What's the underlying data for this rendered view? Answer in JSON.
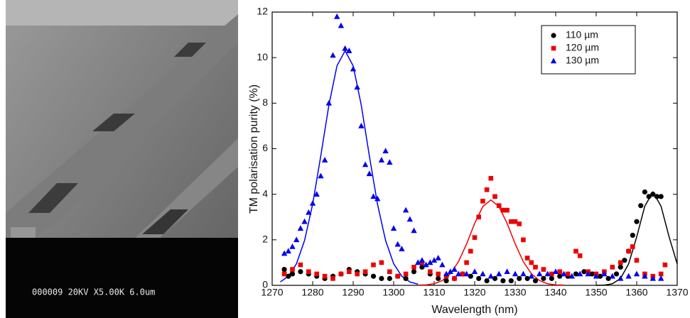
{
  "image": {
    "caption": "000009 20KV X5.00K 6.0um"
  },
  "chart_data": {
    "type": "scatter",
    "xlabel": "Wavelength (nm)",
    "ylabel": "TM polarisation purity (%)",
    "xlim": [
      1270,
      1370
    ],
    "xticks": [
      1270,
      1280,
      1290,
      1300,
      1310,
      1320,
      1330,
      1340,
      1350,
      1360,
      1370
    ],
    "ylim": [
      0,
      12
    ],
    "yticks": [
      0,
      2,
      4,
      6,
      8,
      10,
      12
    ],
    "legend": "upper right",
    "series": [
      {
        "name": "110 µm",
        "color": "#000000",
        "marker": "circle",
        "x": [
          1273,
          1274,
          1275,
          1277,
          1279,
          1281,
          1283,
          1285,
          1287,
          1289,
          1291,
          1293,
          1295,
          1297,
          1299,
          1301,
          1303,
          1305,
          1307,
          1309,
          1311,
          1313,
          1315,
          1317,
          1319,
          1321,
          1323,
          1325,
          1327,
          1329,
          1331,
          1333,
          1335,
          1337,
          1339,
          1341,
          1343,
          1345,
          1347,
          1349,
          1351,
          1353,
          1355,
          1356,
          1357,
          1358,
          1359,
          1360,
          1361,
          1362,
          1363,
          1364,
          1365,
          1366
        ],
        "values": [
          0.7,
          0.4,
          0.5,
          0.6,
          0.5,
          0.4,
          0.3,
          0.4,
          0.5,
          0.7,
          0.6,
          0.5,
          0.4,
          0.3,
          0.3,
          0.4,
          0.3,
          0.6,
          0.8,
          0.5,
          0.3,
          0.2,
          0.3,
          0.5,
          0.4,
          0.3,
          0.2,
          0.3,
          0.2,
          0.2,
          0.3,
          0.3,
          0.2,
          0.3,
          0.3,
          0.4,
          0.4,
          0.5,
          0.6,
          0.5,
          0.4,
          0.3,
          0.5,
          0.8,
          1.1,
          1.5,
          2.2,
          2.8,
          3.5,
          4.1,
          3.9,
          4.0,
          3.9,
          3.9
        ],
        "fit": {
          "x": [
            1350,
            1352,
            1354,
            1356,
            1358,
            1360,
            1362,
            1364,
            1366,
            1368,
            1370
          ],
          "values": [
            0,
            0.01,
            0.07,
            0.3,
            0.94,
            2.13,
            3.48,
            4.1,
            3.48,
            2.13,
            0.94
          ]
        }
      },
      {
        "name": "120 µm",
        "color": "#ee0000",
        "marker": "square",
        "x": [
          1273,
          1275,
          1277,
          1279,
          1281,
          1283,
          1285,
          1287,
          1289,
          1291,
          1293,
          1295,
          1297,
          1299,
          1301,
          1303,
          1305,
          1307,
          1309,
          1311,
          1313,
          1315,
          1317,
          1318,
          1319,
          1320,
          1321,
          1322,
          1323,
          1324,
          1325,
          1326,
          1327,
          1328,
          1329,
          1330,
          1331,
          1332,
          1333,
          1334,
          1335,
          1337,
          1339,
          1341,
          1343,
          1345,
          1346,
          1348,
          1350,
          1352,
          1354,
          1356,
          1358,
          1359,
          1360,
          1362,
          1364,
          1366,
          1367
        ],
        "values": [
          0.5,
          0.7,
          0.9,
          0.6,
          0.5,
          0.4,
          0.3,
          0.5,
          0.6,
          0.5,
          0.6,
          0.9,
          1.0,
          0.6,
          0.4,
          0.5,
          0.8,
          1.0,
          0.6,
          0.5,
          0.4,
          0.3,
          0.5,
          1.0,
          1.5,
          2.1,
          3.0,
          3.7,
          4.2,
          4.7,
          3.9,
          3.5,
          3.3,
          3.3,
          2.8,
          2.8,
          2.7,
          2.0,
          1.2,
          1.0,
          0.8,
          0.7,
          0.5,
          0.6,
          0.5,
          1.5,
          1.3,
          0.6,
          0.5,
          0.6,
          0.8,
          1.0,
          1.5,
          1.7,
          1.1,
          0.5,
          0.4,
          0.5,
          0.9
        ],
        "fit": {
          "x": [
            1306,
            1308,
            1310,
            1312,
            1314,
            1316,
            1318,
            1320,
            1322,
            1324,
            1326,
            1328,
            1330,
            1332,
            1334,
            1336,
            1338,
            1340,
            1342
          ],
          "values": [
            0.01,
            0.02,
            0.07,
            0.21,
            0.51,
            1.04,
            1.82,
            2.72,
            3.46,
            3.75,
            3.46,
            2.72,
            1.82,
            1.04,
            0.51,
            0.21,
            0.07,
            0.02,
            0.01
          ]
        }
      },
      {
        "name": "130 µm",
        "color": "#0000ee",
        "marker": "triangle",
        "x": [
          1273,
          1274,
          1275,
          1276,
          1277,
          1278,
          1279,
          1280,
          1281,
          1282,
          1283,
          1284,
          1285,
          1286,
          1287,
          1288,
          1289,
          1290,
          1291,
          1292,
          1293,
          1294,
          1295,
          1296,
          1297,
          1298,
          1299,
          1300,
          1301,
          1302,
          1303,
          1304,
          1305,
          1306,
          1307,
          1308,
          1309,
          1310,
          1311,
          1312,
          1313,
          1314,
          1315,
          1316,
          1318,
          1320,
          1322,
          1324,
          1326,
          1328,
          1330,
          1332,
          1334,
          1336,
          1338,
          1340,
          1342,
          1344,
          1346,
          1348,
          1350,
          1352,
          1354,
          1356,
          1358,
          1360,
          1362,
          1364,
          1366
        ],
        "values": [
          1.4,
          1.5,
          1.7,
          2.0,
          2.5,
          2.8,
          3.2,
          3.6,
          4.0,
          4.8,
          5.5,
          8.0,
          10.1,
          11.8,
          11.4,
          10.4,
          10.3,
          9.5,
          8.7,
          7.0,
          5.3,
          4.9,
          3.9,
          3.8,
          5.5,
          5.9,
          5.4,
          2.5,
          1.8,
          1.6,
          3.3,
          2.9,
          2.4,
          1.0,
          1.1,
          0.9,
          1.0,
          1.1,
          1.2,
          0.9,
          0.5,
          0.6,
          0.7,
          0.5,
          0.5,
          0.6,
          0.5,
          0.4,
          0.5,
          0.6,
          0.5,
          0.5,
          0.4,
          0.5,
          0.5,
          0.6,
          0.5,
          0.4,
          0.5,
          0.5,
          0.4,
          0.5,
          0.4,
          0.3,
          0.4,
          0.5,
          0.4,
          0.3,
          0.3
        ],
        "fit": {
          "x": [
            1272,
            1274,
            1276,
            1278,
            1280,
            1282,
            1284,
            1286,
            1288,
            1290,
            1292,
            1294,
            1296,
            1298,
            1300,
            1302,
            1304,
            1306
          ],
          "values": [
            0.15,
            0.4,
            0.95,
            1.97,
            3.57,
            5.68,
            7.91,
            9.64,
            10.3,
            9.64,
            7.91,
            5.68,
            3.57,
            1.97,
            0.95,
            0.4,
            0.15,
            0.05
          ]
        }
      }
    ]
  }
}
